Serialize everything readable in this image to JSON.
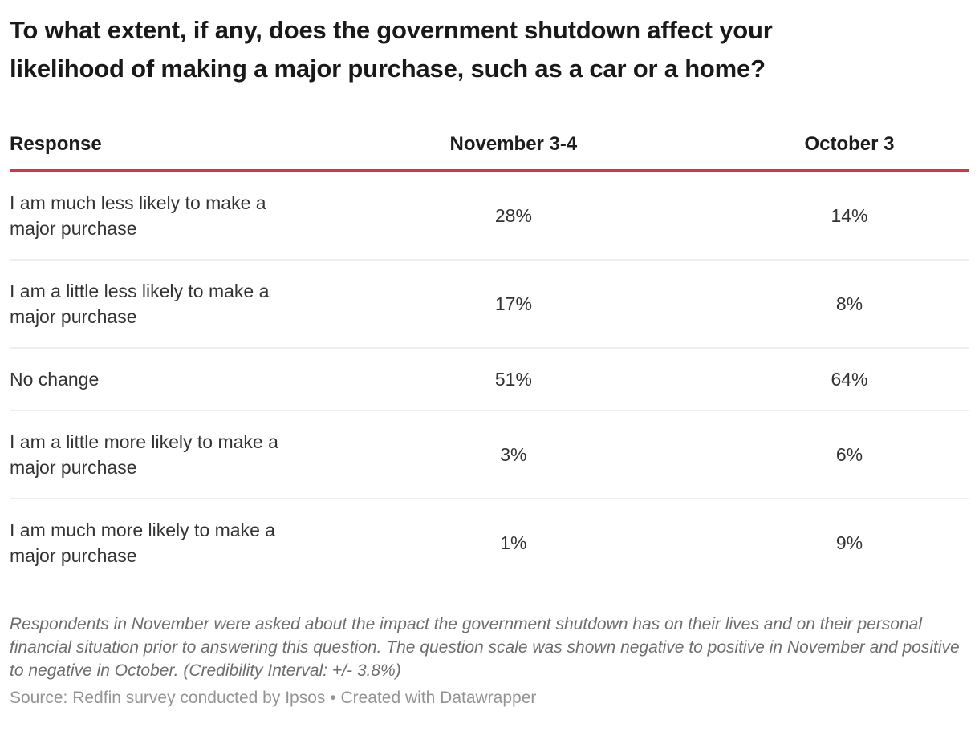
{
  "title": "To what extent, if any, does the government shutdown affect your likelihood of making a major purchase, such as a car or a home?",
  "table": {
    "columns": [
      "Response",
      "November 3-4",
      "October 3"
    ],
    "rows": [
      {
        "response": "I am much less likely to make a major purchase",
        "november": "28%",
        "october": "14%"
      },
      {
        "response": "I am a little less likely to make a major purchase",
        "november": "17%",
        "october": "8%"
      },
      {
        "response": "No change",
        "november": "51%",
        "october": "64%"
      },
      {
        "response": "I am a little more likely to make a major purchase",
        "november": "3%",
        "october": "6%"
      },
      {
        "response": "I am much more likely to make a major purchase",
        "november": "1%",
        "october": "9%"
      }
    ]
  },
  "notes": "Respondents in November were asked about the impact the government shutdown has on their lives and on their personal financial situation prior to answering this question. The question scale was shown negative to positive in November and positive to negative in October. (Credibility Interval: +/- 3.8%)",
  "source": {
    "label": "Source: Redfin survey conducted by Ipsos",
    "separator": "•",
    "credit": "Created with Datawrapper"
  },
  "colors": {
    "header_rule": "#d63446",
    "row_divider": "#eeeeee",
    "title_text": "#191919",
    "header_text": "#1d1d1d",
    "body_text": "#333333",
    "notes_text": "#6d6d6d",
    "source_text": "#939393",
    "background": "#ffffff"
  },
  "chart_data": {
    "type": "table",
    "title": "To what extent, if any, does the government shutdown affect your likelihood of making a major purchase, such as a car or a home?",
    "categories": [
      "I am much less likely to make a major purchase",
      "I am a little less likely to make a major purchase",
      "No change",
      "I am a little more likely to make a major purchase",
      "I am much more likely to make a major purchase"
    ],
    "series": [
      {
        "name": "November 3-4",
        "values": [
          28,
          17,
          51,
          3,
          1
        ]
      },
      {
        "name": "October 3",
        "values": [
          14,
          8,
          64,
          6,
          9
        ]
      }
    ],
    "value_unit": "%",
    "notes": "Respondents in November were asked about the impact the government shutdown has on their lives and on their personal financial situation prior to answering this question. The question scale was shown negative to positive in November and positive to negative in October. (Credibility Interval: +/- 3.8%)",
    "source": "Source: Redfin survey conducted by Ipsos",
    "credit": "Created with Datawrapper",
    "layout_hints": {
      "header_rule_color": "#d63446",
      "first_column_align": "left",
      "value_columns_align": "center"
    }
  }
}
